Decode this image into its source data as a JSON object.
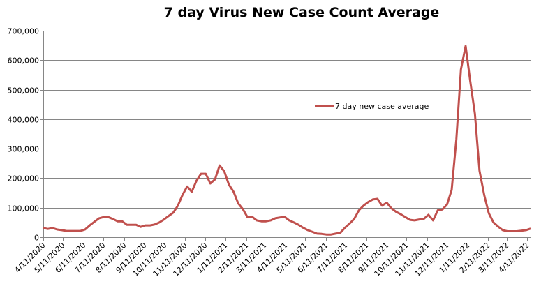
{
  "chart_data": {
    "type": "line",
    "title": "7 day Virus New Case Count Average",
    "xlabel": "",
    "ylabel": "",
    "ylim": [
      0,
      700000
    ],
    "xlim": [
      "4/11/2020",
      "4/17/2022"
    ],
    "y_ticks": [
      0,
      100000,
      200000,
      300000,
      400000,
      500000,
      600000,
      700000
    ],
    "y_tick_labels": [
      "0",
      "100,000",
      "200,000",
      "300,000",
      "400,000",
      "500,000",
      "600,000",
      "700,000"
    ],
    "x_tick_labels": [
      "4/11/2020",
      "5/11/2020",
      "6/11/2020",
      "7/11/2020",
      "8/11/2020",
      "9/11/2020",
      "10/11/2020",
      "11/11/2020",
      "12/11/2020",
      "1/11/2021",
      "2/11/2021",
      "3/11/2021",
      "4/11/2021",
      "5/11/2021",
      "6/11/2021",
      "7/11/2021",
      "8/11/2021",
      "9/11/2021",
      "10/11/2021",
      "11/11/2021",
      "12/11/2021",
      "1/11/2022",
      "2/11/2022",
      "3/11/2022",
      "4/11/2022"
    ],
    "grid": "horizontal",
    "legend": "center-right",
    "colors": {
      "series": "#C0504D",
      "grid": "#868686"
    },
    "series": [
      {
        "name": "7 day new case average",
        "x": [
          "4/11/2020",
          "4/18/2020",
          "4/25/2020",
          "5/2/2020",
          "5/9/2020",
          "5/16/2020",
          "5/23/2020",
          "5/30/2020",
          "6/6/2020",
          "6/13/2020",
          "6/20/2020",
          "6/27/2020",
          "7/4/2020",
          "7/11/2020",
          "7/18/2020",
          "7/25/2020",
          "8/1/2020",
          "8/8/2020",
          "8/15/2020",
          "8/22/2020",
          "8/29/2020",
          "9/5/2020",
          "9/12/2020",
          "9/19/2020",
          "9/26/2020",
          "10/3/2020",
          "10/10/2020",
          "10/17/2020",
          "10/24/2020",
          "10/31/2020",
          "11/7/2020",
          "11/14/2020",
          "11/21/2020",
          "11/28/2020",
          "12/5/2020",
          "12/12/2020",
          "12/19/2020",
          "12/26/2020",
          "1/2/2021",
          "1/9/2021",
          "1/16/2021",
          "1/23/2021",
          "1/30/2021",
          "2/6/2021",
          "2/13/2021",
          "2/20/2021",
          "2/27/2021",
          "3/6/2021",
          "3/13/2021",
          "3/20/2021",
          "3/27/2021",
          "4/3/2021",
          "4/10/2021",
          "4/17/2021",
          "4/24/2021",
          "5/1/2021",
          "5/8/2021",
          "5/15/2021",
          "5/22/2021",
          "5/29/2021",
          "6/5/2021",
          "6/12/2021",
          "6/19/2021",
          "6/26/2021",
          "7/3/2021",
          "7/10/2021",
          "7/17/2021",
          "7/24/2021",
          "7/31/2021",
          "8/7/2021",
          "8/14/2021",
          "8/21/2021",
          "8/28/2021",
          "9/4/2021",
          "9/11/2021",
          "9/18/2021",
          "9/25/2021",
          "10/2/2021",
          "10/9/2021",
          "10/16/2021",
          "10/23/2021",
          "10/30/2021",
          "11/6/2021",
          "11/13/2021",
          "11/20/2021",
          "11/27/2021",
          "12/4/2021",
          "12/11/2021",
          "12/18/2021",
          "12/25/2021",
          "1/1/2022",
          "1/8/2022",
          "1/15/2022",
          "1/22/2022",
          "1/29/2022",
          "2/5/2022",
          "2/12/2022",
          "2/19/2022",
          "2/26/2022",
          "3/5/2022",
          "3/12/2022",
          "3/19/2022",
          "3/26/2022",
          "4/2/2022",
          "4/9/2022",
          "4/16/2022"
        ],
        "values": [
          31000,
          28000,
          31000,
          26000,
          24000,
          21000,
          21000,
          21000,
          21000,
          26000,
          40000,
          52000,
          64000,
          68000,
          68000,
          62000,
          54000,
          54000,
          42000,
          42000,
          42000,
          35000,
          40000,
          40000,
          43000,
          50000,
          60000,
          72000,
          83000,
          107000,
          143000,
          172000,
          154000,
          191000,
          215000,
          215000,
          182000,
          196000,
          243000,
          223000,
          178000,
          154000,
          115000,
          95000,
          68000,
          69000,
          57000,
          54000,
          54000,
          57000,
          64000,
          67000,
          69000,
          57000,
          50000,
          42000,
          32000,
          24000,
          18000,
          12000,
          11000,
          9000,
          9000,
          12000,
          15000,
          32000,
          46000,
          62000,
          91000,
          107000,
          119000,
          128000,
          130000,
          107000,
          117000,
          98000,
          86000,
          78000,
          68000,
          59000,
          57000,
          60000,
          62000,
          76000,
          57000,
          91000,
          94000,
          111000,
          160000,
          331000,
          569000,
          648000,
          529000,
          418000,
          225000,
          143000,
          81000,
          50000,
          36000,
          24000,
          20000,
          20000,
          20000,
          22000,
          24000,
          29000
        ]
      }
    ]
  }
}
